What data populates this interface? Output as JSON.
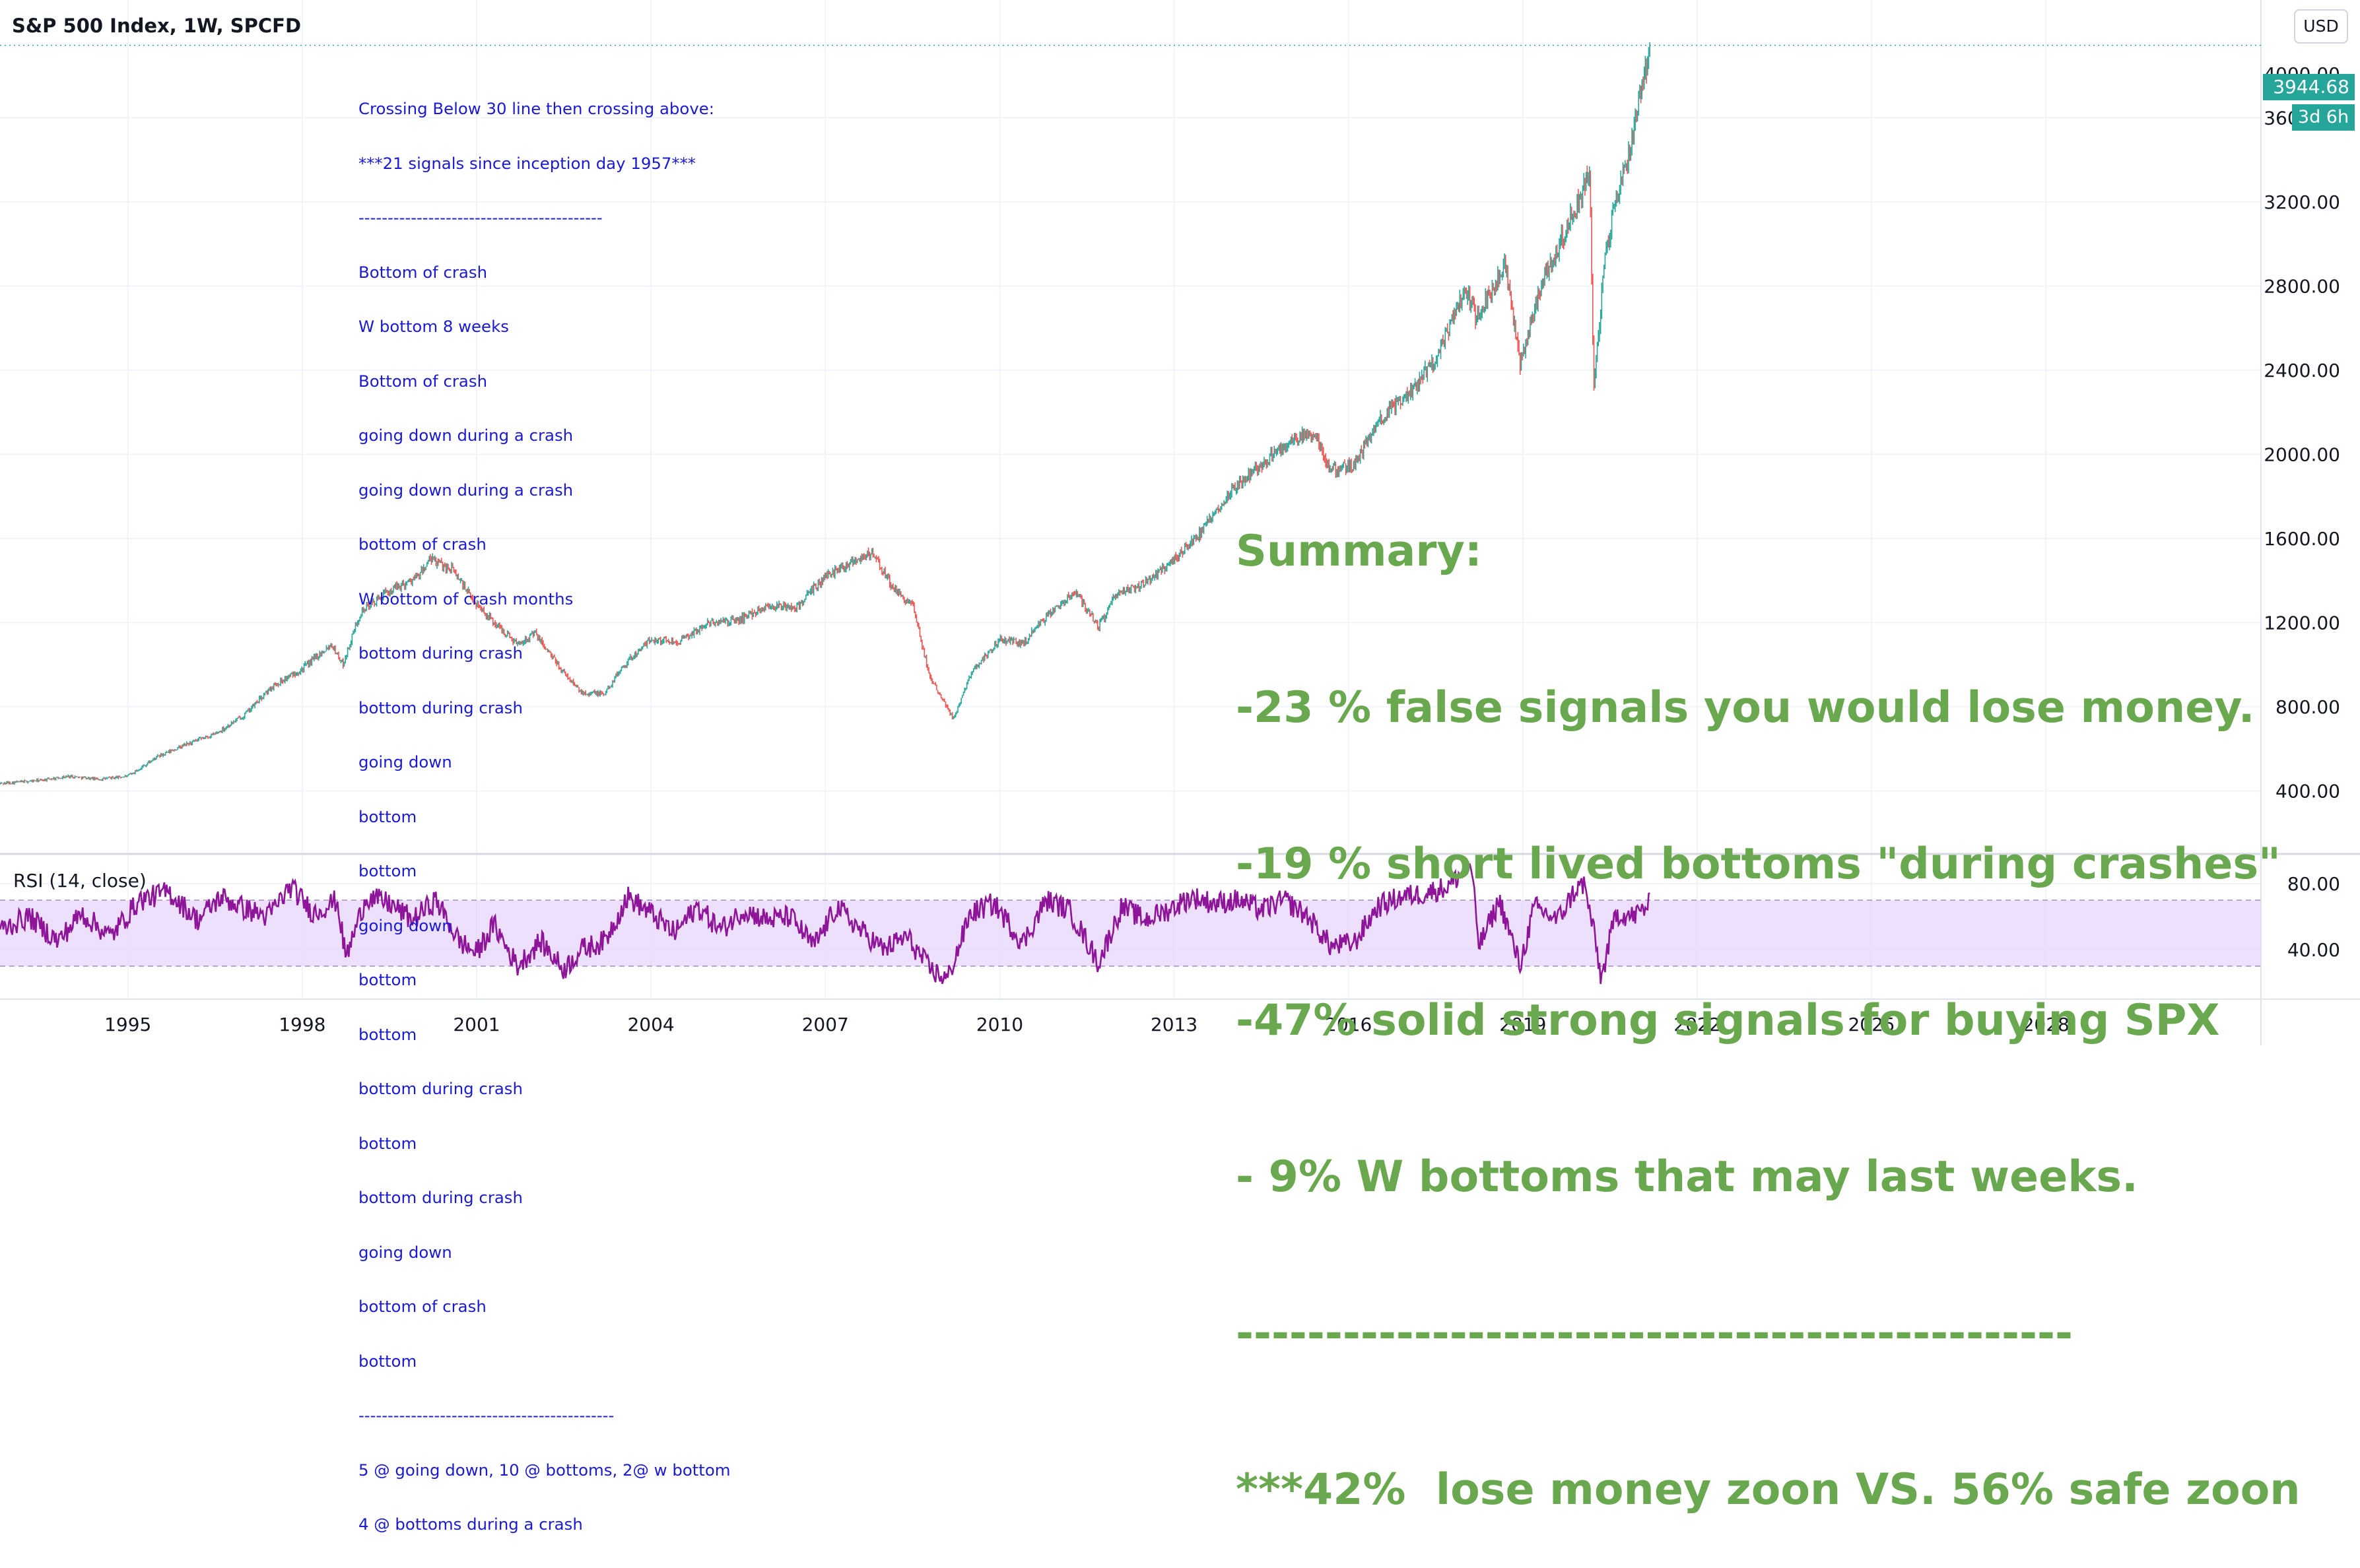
{
  "header": {
    "title": "S&P 500 Index, 1W, SPCFD",
    "currency": "USD"
  },
  "price_scale": {
    "last_price": "3944.68",
    "countdown": "3d 6h",
    "partial_label": "4000.00"
  },
  "indicator": {
    "label": "RSI (14, close)"
  },
  "colors": {
    "up": "#26a69a",
    "down": "#ef5350",
    "rsi_line": "#8e1599",
    "rsi_band": "#e7d5fb",
    "note_text": "#1a1ad6",
    "summary_text": "#6aa84f"
  },
  "annotation_note": [
    "Crossing Below 30 line then crossing above:",
    "***21 signals since inception day 1957***",
    "------------------------------------------",
    "Bottom of crash",
    "W bottom 8 weeks",
    "Bottom of crash",
    "going down during a crash",
    "going down during a crash",
    "bottom of crash",
    "W bottom of crash months",
    "bottom during crash",
    "bottom during crash",
    "going down",
    "bottom",
    "bottom",
    "going down",
    "bottom",
    "bottom",
    "bottom during crash",
    "bottom",
    "bottom during crash",
    "going down",
    "bottom of crash",
    "bottom",
    "--------------------------------------------",
    "5 @ going down, 10 @ bottoms, 2@ w bottom",
    "4 @ bottoms during a crash"
  ],
  "annotation_summary": [
    "Summary:",
    "-23 % false signals you would lose money.",
    "-19 % short lived bottoms \"during crashes\"",
    "-47% solid strong signals for buying SPX",
    "- 9% W bottoms that may last weeks.",
    "-----------------------------------------------",
    "***42%  lose money zoon VS. 56% safe zoon"
  ],
  "chart_data": [
    {
      "type": "candlestick",
      "title": "S&P 500 Index, 1W, SPCFD",
      "x_tick_labels": [
        "1995",
        "1998",
        "2001",
        "2004",
        "2007",
        "2010",
        "2013",
        "2016",
        "2019",
        "2022",
        "2025",
        "2028"
      ],
      "x_ticks": [
        1995,
        1998,
        2001,
        2004,
        2007,
        2010,
        2013,
        2016,
        2019,
        2022,
        2025,
        2028
      ],
      "y_tick_labels": [
        "400.00",
        "800.00",
        "1200.00",
        "1600.00",
        "2000.00",
        "2400.00",
        "2800.00",
        "3200.00",
        "3600.00"
      ],
      "y_ticks": [
        400,
        800,
        1200,
        1600,
        2000,
        2400,
        2800,
        3200,
        3600
      ],
      "xlim": [
        1992.8,
        2031.7
      ],
      "ylim": [
        100,
        4160
      ],
      "grid": true,
      "last_price": 3944.68,
      "series": [
        {
          "x": [
            1992.8,
            1993.5,
            1994.0,
            1994.5,
            1995.0,
            1995.5,
            1996.0,
            1996.5,
            1997.0,
            1997.5,
            1998.0,
            1998.5,
            1998.7,
            1999.0,
            1999.5,
            2000.0,
            2000.2,
            2000.6,
            2000.9,
            2001.3,
            2001.7,
            2002.0,
            2002.5,
            2002.8,
            2003.2,
            2003.5,
            2004.0,
            2004.5,
            2005.0,
            2005.5,
            2006.0,
            2006.5,
            2007.0,
            2007.5,
            2007.8,
            2008.2,
            2008.5,
            2008.8,
            2009.0,
            2009.2,
            2009.5,
            2010.0,
            2010.4,
            2010.7,
            2011.3,
            2011.7,
            2012.0,
            2012.5,
            2013.0,
            2013.5,
            2014.0,
            2014.5,
            2015.0,
            2015.4,
            2015.7,
            2016.1,
            2016.5,
            2017.0,
            2017.5,
            2018.0,
            2018.2,
            2018.7,
            2018.95,
            2019.3,
            2019.6,
            2020.0,
            2020.15,
            2020.22,
            2020.4,
            2020.6,
            2020.8,
            2021.0,
            2021.2
          ],
          "close": [
            435,
            450,
            470,
            455,
            470,
            560,
            620,
            670,
            760,
            900,
            980,
            1100,
            1000,
            1250,
            1350,
            1420,
            1500,
            1450,
            1320,
            1200,
            1100,
            1150,
            960,
            870,
            860,
            990,
            1120,
            1110,
            1200,
            1210,
            1280,
            1270,
            1420,
            1500,
            1530,
            1350,
            1280,
            940,
            850,
            740,
            960,
            1120,
            1100,
            1200,
            1350,
            1180,
            1330,
            1390,
            1500,
            1640,
            1840,
            1950,
            2060,
            2100,
            1920,
            1950,
            2150,
            2280,
            2450,
            2780,
            2650,
            2900,
            2420,
            2800,
            2980,
            3230,
            3360,
            2300,
            2900,
            3220,
            3400,
            3700,
            3944.68
          ]
        }
      ]
    },
    {
      "type": "line",
      "title": "RSI (14, close)",
      "y_tick_labels": [
        "40.00",
        "80.00"
      ],
      "y_ticks": [
        40,
        80
      ],
      "ylim": [
        10,
        98
      ],
      "band": [
        30,
        70
      ],
      "series": [
        {
          "name": "RSI (14, close)",
          "x": [
            1992.8,
            1993.3,
            1993.8,
            1994.2,
            1994.7,
            1995.2,
            1995.7,
            1996.2,
            1996.6,
            1997.0,
            1997.4,
            1997.8,
            1998.2,
            1998.6,
            1998.75,
            1999.1,
            1999.5,
            1999.9,
            2000.3,
            2000.7,
            2001.0,
            2001.3,
            2001.7,
            2002.1,
            2002.5,
            2002.8,
            2003.2,
            2003.6,
            2004.0,
            2004.4,
            2004.8,
            2005.2,
            2005.6,
            2006.0,
            2006.4,
            2006.8,
            2007.2,
            2007.6,
            2008.0,
            2008.4,
            2008.8,
            2009.1,
            2009.5,
            2009.9,
            2010.4,
            2010.8,
            2011.2,
            2011.7,
            2012.1,
            2012.5,
            2012.9,
            2013.3,
            2013.7,
            2014.1,
            2014.5,
            2014.9,
            2015.3,
            2015.7,
            2016.1,
            2016.5,
            2016.9,
            2017.3,
            2017.7,
            2018.0,
            2018.1,
            2018.25,
            2018.6,
            2018.95,
            2019.2,
            2019.6,
            2019.9,
            2020.05,
            2020.2,
            2020.35,
            2020.6,
            2020.9,
            2021.2
          ],
          "values": [
            52,
            60,
            45,
            62,
            48,
            70,
            75,
            58,
            72,
            65,
            60,
            78,
            62,
            70,
            35,
            72,
            68,
            58,
            70,
            45,
            38,
            55,
            30,
            45,
            28,
            40,
            45,
            72,
            62,
            50,
            66,
            52,
            64,
            58,
            60,
            42,
            66,
            52,
            40,
            48,
            28,
            22,
            62,
            68,
            44,
            70,
            64,
            32,
            66,
            58,
            64,
            72,
            68,
            70,
            64,
            70,
            60,
            42,
            44,
            66,
            72,
            74,
            78,
            88,
            93,
            42,
            70,
            30,
            66,
            58,
            76,
            80,
            55,
            22,
            62,
            60,
            68
          ]
        }
      ]
    }
  ]
}
